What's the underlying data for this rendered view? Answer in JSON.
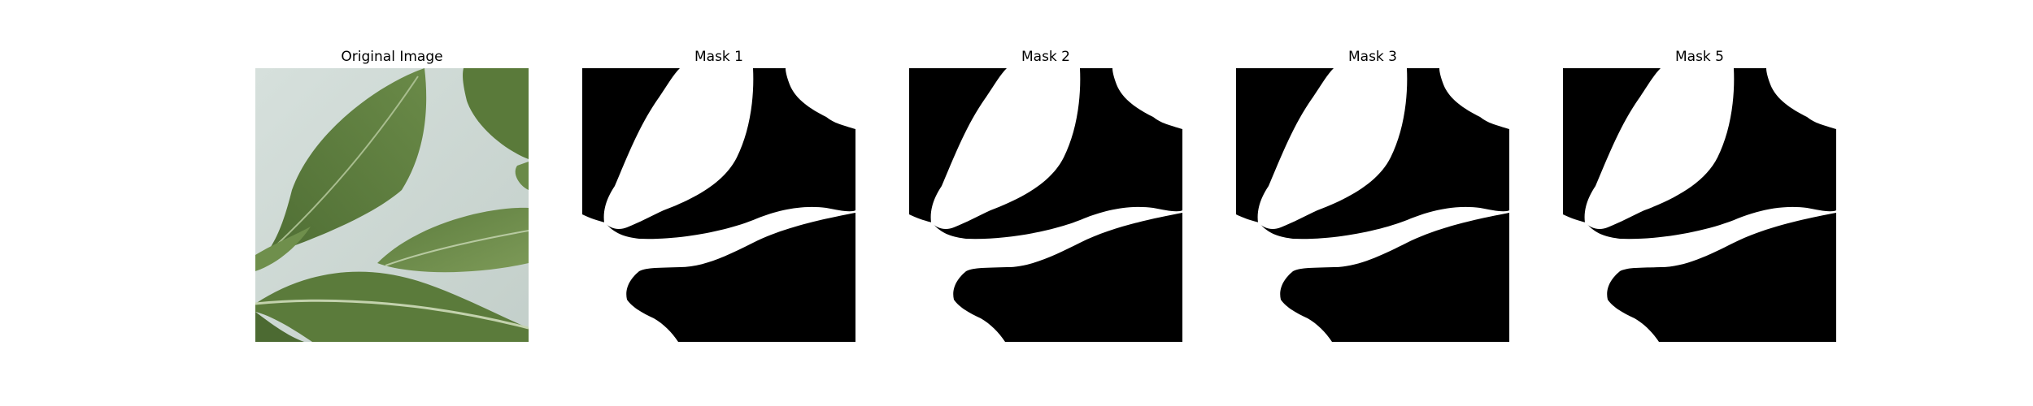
{
  "panels": [
    {
      "title": "Original Image",
      "kind": "photo"
    },
    {
      "title": "Mask 1",
      "kind": "mask"
    },
    {
      "title": "Mask 2",
      "kind": "mask"
    },
    {
      "title": "Mask 3",
      "kind": "mask"
    },
    {
      "title": "Mask 5",
      "kind": "mask"
    }
  ],
  "colors": {
    "mask_background": "#000000",
    "mask_foreground": "#ffffff",
    "photo_background": "#cfdad6",
    "leaf_dark": "#4f6e34",
    "leaf_mid": "#6a8a48",
    "leaf_light": "#86a263",
    "leaf_vein": "#b7c9a0"
  }
}
